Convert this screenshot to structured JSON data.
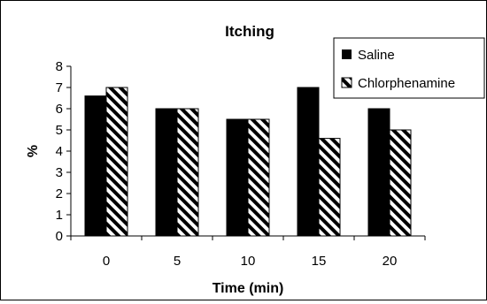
{
  "chart_data": {
    "type": "bar",
    "title": "Itching",
    "xlabel": "Time (min)",
    "ylabel": "%",
    "categories": [
      "0",
      "5",
      "10",
      "15",
      "20"
    ],
    "ylim": [
      0,
      8
    ],
    "yticks": [
      "0",
      "1",
      "2",
      "3",
      "4",
      "5",
      "6",
      "7",
      "8"
    ],
    "grid": false,
    "legend_position": "top-right",
    "series": [
      {
        "name": "Saline",
        "values": [
          6.6,
          6.0,
          5.5,
          7.0,
          6.0
        ],
        "fill": "solid"
      },
      {
        "name": "Chlorphenamine",
        "values": [
          7.0,
          6.0,
          5.5,
          4.6,
          5.0
        ],
        "fill": "hatched"
      }
    ],
    "colors": {
      "bar": "#000000",
      "hatch_bg": "#ffffff",
      "axis": "#000000"
    }
  }
}
